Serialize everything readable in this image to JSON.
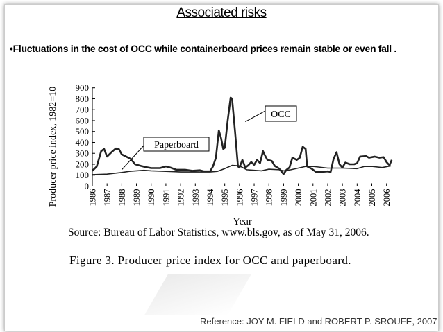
{
  "slide": {
    "title": "Associated risks",
    "bullet": "•Fluctuations in the cost of OCC  while containerboard prices remain stable or even fall .",
    "source": "Source: Bureau of Labor Statistics, www.bls.gov, as of May 31, 2006.",
    "caption": "Figure 3.   Producer price index for OCC and paperboard.",
    "reference": "Reference: JOY M. FIELD and ROBERT P. SROUFE, 2007"
  },
  "chart_data": {
    "type": "line",
    "title": "",
    "xlabel": "Year",
    "ylabel": "Producer price index, 1982=10",
    "xlim": [
      1986,
      2006.4
    ],
    "ylim": [
      0,
      900
    ],
    "yticks": [
      0,
      100,
      200,
      300,
      400,
      500,
      600,
      700,
      800,
      900
    ],
    "xticks": [
      1986,
      1987,
      1988,
      1989,
      1990,
      1991,
      1992,
      1993,
      1994,
      1995,
      1996,
      1997,
      1998,
      1999,
      2000,
      2001,
      2002,
      2003,
      2004,
      2005,
      2006
    ],
    "series": [
      {
        "name": "OCC",
        "points": [
          [
            1986.0,
            140
          ],
          [
            1986.3,
            180
          ],
          [
            1986.6,
            320
          ],
          [
            1986.8,
            340
          ],
          [
            1987.0,
            270
          ],
          [
            1987.3,
            310
          ],
          [
            1987.6,
            345
          ],
          [
            1987.8,
            340
          ],
          [
            1988.0,
            290
          ],
          [
            1988.3,
            270
          ],
          [
            1988.6,
            250
          ],
          [
            1988.9,
            200
          ],
          [
            1989.3,
            185
          ],
          [
            1989.6,
            175
          ],
          [
            1990.0,
            165
          ],
          [
            1990.6,
            165
          ],
          [
            1991.0,
            180
          ],
          [
            1991.3,
            170
          ],
          [
            1991.7,
            150
          ],
          [
            1992.3,
            150
          ],
          [
            1992.8,
            140
          ],
          [
            1993.3,
            145
          ],
          [
            1993.6,
            135
          ],
          [
            1994.0,
            135
          ],
          [
            1994.2,
            180
          ],
          [
            1994.4,
            260
          ],
          [
            1994.6,
            510
          ],
          [
            1994.75,
            440
          ],
          [
            1994.9,
            340
          ],
          [
            1995.0,
            350
          ],
          [
            1995.2,
            600
          ],
          [
            1995.4,
            810
          ],
          [
            1995.5,
            800
          ],
          [
            1995.7,
            500
          ],
          [
            1995.9,
            180
          ],
          [
            1996.0,
            170
          ],
          [
            1996.2,
            240
          ],
          [
            1996.4,
            170
          ],
          [
            1996.6,
            190
          ],
          [
            1996.8,
            220
          ],
          [
            1997.0,
            195
          ],
          [
            1997.2,
            240
          ],
          [
            1997.4,
            210
          ],
          [
            1997.6,
            320
          ],
          [
            1997.7,
            290
          ],
          [
            1997.9,
            240
          ],
          [
            1998.2,
            230
          ],
          [
            1998.4,
            185
          ],
          [
            1998.7,
            160
          ],
          [
            1999.0,
            110
          ],
          [
            1999.2,
            150
          ],
          [
            1999.4,
            170
          ],
          [
            1999.6,
            260
          ],
          [
            1999.9,
            240
          ],
          [
            2000.1,
            260
          ],
          [
            2000.3,
            360
          ],
          [
            2000.5,
            340
          ],
          [
            2000.6,
            180
          ],
          [
            2000.9,
            160
          ],
          [
            2001.2,
            130
          ],
          [
            2001.6,
            130
          ],
          [
            2002.0,
            135
          ],
          [
            2002.2,
            130
          ],
          [
            2002.4,
            250
          ],
          [
            2002.6,
            310
          ],
          [
            2002.8,
            200
          ],
          [
            2003.0,
            170
          ],
          [
            2003.2,
            215
          ],
          [
            2003.5,
            200
          ],
          [
            2003.8,
            200
          ],
          [
            2004.0,
            210
          ],
          [
            2004.2,
            270
          ],
          [
            2004.6,
            275
          ],
          [
            2004.8,
            260
          ],
          [
            2005.2,
            270
          ],
          [
            2005.5,
            260
          ],
          [
            2005.8,
            265
          ],
          [
            2006.0,
            220
          ],
          [
            2006.2,
            190
          ],
          [
            2006.35,
            240
          ]
        ]
      },
      {
        "name": "Paperboard",
        "points": [
          [
            1986,
            105
          ],
          [
            1987,
            110
          ],
          [
            1988,
            125
          ],
          [
            1988.5,
            135
          ],
          [
            1989.5,
            145
          ],
          [
            1990,
            140
          ],
          [
            1991,
            135
          ],
          [
            1992,
            130
          ],
          [
            1993,
            130
          ],
          [
            1994,
            130
          ],
          [
            1994.5,
            135
          ],
          [
            1995,
            160
          ],
          [
            1995.5,
            190
          ],
          [
            1996,
            185
          ],
          [
            1996.5,
            150
          ],
          [
            1997,
            145
          ],
          [
            1997.5,
            140
          ],
          [
            1998,
            155
          ],
          [
            1998.7,
            150
          ],
          [
            1999,
            140
          ],
          [
            1999.5,
            150
          ],
          [
            2000,
            165
          ],
          [
            2000.5,
            180
          ],
          [
            2001,
            180
          ],
          [
            2002,
            165
          ],
          [
            2003,
            165
          ],
          [
            2004,
            160
          ],
          [
            2004.5,
            180
          ],
          [
            2005,
            180
          ],
          [
            2005.7,
            170
          ],
          [
            2006.3,
            185
          ]
        ]
      }
    ],
    "annotations": [
      {
        "text": "OCC",
        "points_to": [
          1996.4,
          590
        ]
      },
      {
        "text": "Paperboard",
        "points_to": [
          1988.0,
          150
        ]
      }
    ]
  }
}
